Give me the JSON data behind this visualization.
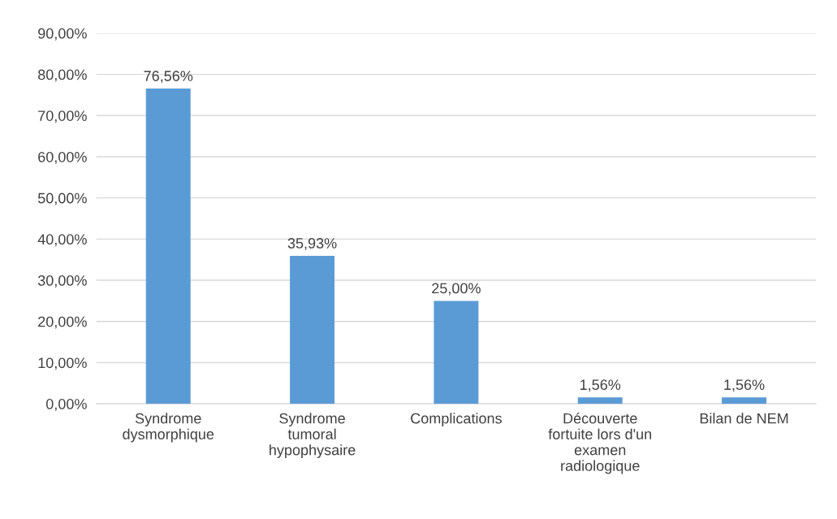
{
  "chart_data": {
    "type": "bar",
    "categories": [
      "Syndrome\ndysmorphique",
      "Syndrome\ntumoral\nhypophysaire",
      "Complications",
      "Découverte\nfortuite lors d'un\nexamen\nradiologique",
      "Bilan de NEM"
    ],
    "values": [
      76.56,
      35.93,
      25.0,
      1.56,
      1.56
    ],
    "value_labels": [
      "76,56%",
      "35,93%",
      "25,00%",
      "1,56%",
      "1,56%"
    ],
    "color": "#5b9bd5",
    "ylim": [
      0,
      90
    ],
    "yticks": [
      {
        "value": 0,
        "label": "0,00%"
      },
      {
        "value": 10,
        "label": "10,00%"
      },
      {
        "value": 20,
        "label": "20,00%"
      },
      {
        "value": 30,
        "label": "30,00%"
      },
      {
        "value": 40,
        "label": "40,00%"
      },
      {
        "value": 50,
        "label": "50,00%"
      },
      {
        "value": 60,
        "label": "60,00%"
      },
      {
        "value": 70,
        "label": "70,00%"
      },
      {
        "value": 80,
        "label": "80,00%"
      },
      {
        "value": 90,
        "label": "90,00%"
      }
    ],
    "grid": "y"
  }
}
